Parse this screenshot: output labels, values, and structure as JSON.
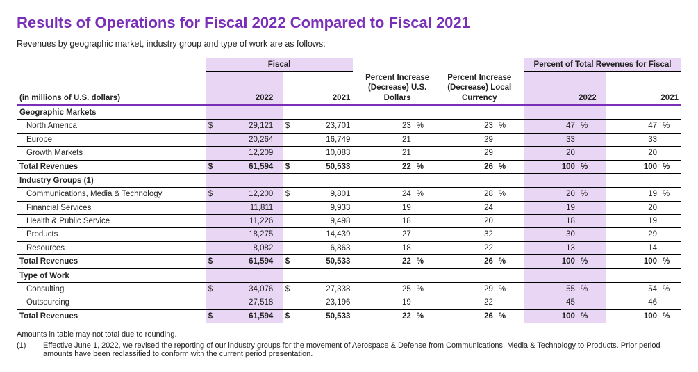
{
  "title": "Results of Operations for Fiscal 2022 Compared to Fiscal 2021",
  "subtitle": "Revenues by geographic market, industry group and type of work are as follows:",
  "colors": {
    "accent": "#7b2fb8",
    "highlight": "#e9d6f4"
  },
  "header": {
    "units": "(in millions of U.S. dollars)",
    "fiscal": "Fiscal",
    "y2022": "2022",
    "y2021": "2021",
    "usd_pct": "Percent Increase (Decrease) U.S. Dollars",
    "local_pct": "Percent Increase (Decrease) Local Currency",
    "pct_total": "Percent of Total Revenues for Fiscal"
  },
  "sections": [
    {
      "name": "Geographic Markets",
      "rows": [
        {
          "label": "North America",
          "v2022": "29,121",
          "v2021": "23,701",
          "usd": "23",
          "usd_sym": "%",
          "loc": "23",
          "loc_sym": "%",
          "p22": "47",
          "p22_sym": "%",
          "p21": "47",
          "p21_sym": "%",
          "dollar": true
        },
        {
          "label": "Europe",
          "v2022": "20,264",
          "v2021": "16,749",
          "usd": "21",
          "usd_sym": "",
          "loc": "29",
          "loc_sym": "",
          "p22": "33",
          "p22_sym": "",
          "p21": "33",
          "p21_sym": ""
        },
        {
          "label": "Growth Markets",
          "v2022": "12,209",
          "v2021": "10,083",
          "usd": "21",
          "usd_sym": "",
          "loc": "29",
          "loc_sym": "",
          "p22": "20",
          "p22_sym": "",
          "p21": "20",
          "p21_sym": ""
        }
      ],
      "total": {
        "label": "Total Revenues",
        "v2022": "61,594",
        "v2021": "50,533",
        "usd": "22",
        "usd_sym": "%",
        "loc": "26",
        "loc_sym": "%",
        "p22": "100",
        "p22_sym": "%",
        "p21": "100",
        "p21_sym": "%",
        "dollar": true
      }
    },
    {
      "name": "Industry Groups (1)",
      "rows": [
        {
          "label": "Communications, Media & Technology",
          "v2022": "12,200",
          "v2021": "9,801",
          "usd": "24",
          "usd_sym": "%",
          "loc": "28",
          "loc_sym": "%",
          "p22": "20",
          "p22_sym": "%",
          "p21": "19",
          "p21_sym": "%",
          "dollar": true
        },
        {
          "label": "Financial Services",
          "v2022": "11,811",
          "v2021": "9,933",
          "usd": "19",
          "usd_sym": "",
          "loc": "24",
          "loc_sym": "",
          "p22": "19",
          "p22_sym": "",
          "p21": "20",
          "p21_sym": ""
        },
        {
          "label": "Health & Public Service",
          "v2022": "11,226",
          "v2021": "9,498",
          "usd": "18",
          "usd_sym": "",
          "loc": "20",
          "loc_sym": "",
          "p22": "18",
          "p22_sym": "",
          "p21": "19",
          "p21_sym": ""
        },
        {
          "label": "Products",
          "v2022": "18,275",
          "v2021": "14,439",
          "usd": "27",
          "usd_sym": "",
          "loc": "32",
          "loc_sym": "",
          "p22": "30",
          "p22_sym": "",
          "p21": "29",
          "p21_sym": ""
        },
        {
          "label": "Resources",
          "v2022": "8,082",
          "v2021": "6,863",
          "usd": "18",
          "usd_sym": "",
          "loc": "22",
          "loc_sym": "",
          "p22": "13",
          "p22_sym": "",
          "p21": "14",
          "p21_sym": ""
        }
      ],
      "total": {
        "label": "Total Revenues",
        "v2022": "61,594",
        "v2021": "50,533",
        "usd": "22",
        "usd_sym": "%",
        "loc": "26",
        "loc_sym": "%",
        "p22": "100",
        "p22_sym": "%",
        "p21": "100",
        "p21_sym": "%",
        "dollar": true
      }
    },
    {
      "name": "Type of Work",
      "rows": [
        {
          "label": "Consulting",
          "v2022": "34,076",
          "v2021": "27,338",
          "usd": "25",
          "usd_sym": "%",
          "loc": "29",
          "loc_sym": "%",
          "p22": "55",
          "p22_sym": "%",
          "p21": "54",
          "p21_sym": "%",
          "dollar": true
        },
        {
          "label": "Outsourcing",
          "v2022": "27,518",
          "v2021": "23,196",
          "usd": "19",
          "usd_sym": "",
          "loc": "22",
          "loc_sym": "",
          "p22": "45",
          "p22_sym": "",
          "p21": "46",
          "p21_sym": ""
        }
      ],
      "total": {
        "label": "Total Revenues",
        "v2022": "61,594",
        "v2021": "50,533",
        "usd": "22",
        "usd_sym": "%",
        "loc": "26",
        "loc_sym": "%",
        "p22": "100",
        "p22_sym": "%",
        "p21": "100",
        "p21_sym": "%",
        "dollar": true
      }
    }
  ],
  "footnotes": {
    "rounding": "Amounts in table may not total due to rounding.",
    "fn1_num": "(1)",
    "fn1_txt": "Effective June 1, 2022, we revised the reporting of our industry groups for the movement of Aerospace & Defense from Communications, Media & Technology to Products. Prior period amounts have been reclassified to conform with the current period presentation."
  }
}
